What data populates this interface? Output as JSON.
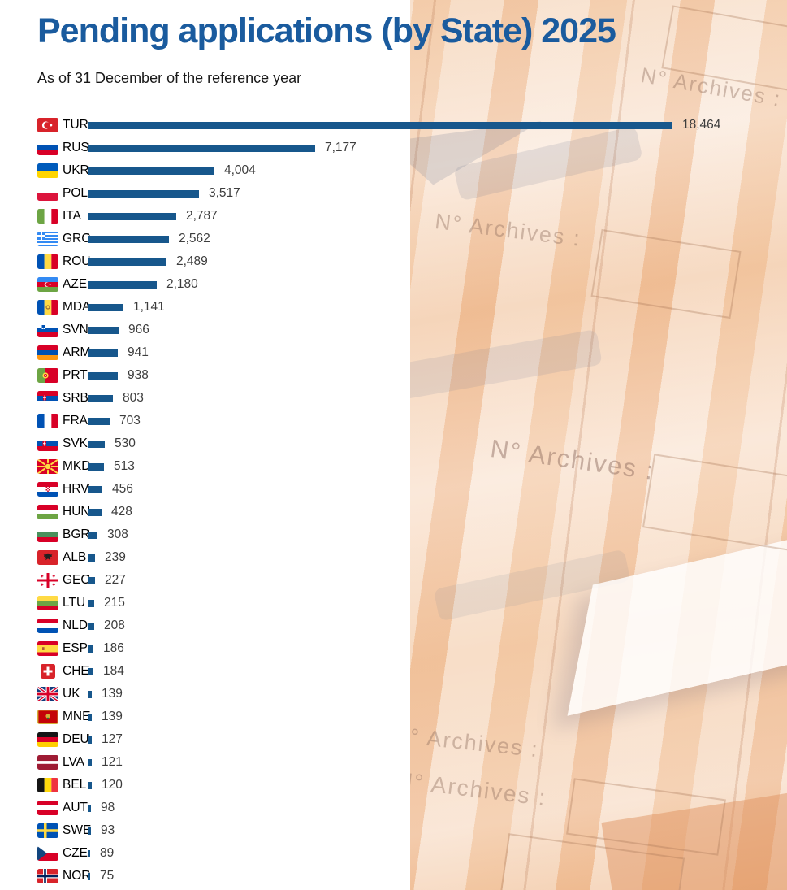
{
  "title": "Pending applications (by State) 2025",
  "subtitle": "As of 31 December of the reference year",
  "background": {
    "archive_label": "N° Archives :"
  },
  "colors": {
    "title_blue": "#1a5b9e",
    "bar_blue": "#17578c",
    "value_text": "#3d3d3d"
  },
  "chart_data": {
    "type": "bar",
    "orientation": "horizontal",
    "title": "Pending applications (by State) 2025",
    "subtitle": "As of 31 December of the reference year",
    "xlabel": "",
    "ylabel": "",
    "xlim": [
      0,
      18464
    ],
    "grid": false,
    "legend": "none",
    "categories": [
      "TUR",
      "RUS",
      "UKR",
      "POL",
      "ITA",
      "GRC",
      "ROU",
      "AZE",
      "MDA",
      "SVN",
      "ARM",
      "PRT",
      "SRB",
      "FRA",
      "SVK",
      "MKD",
      "HRV",
      "HUN",
      "BGR",
      "ALB",
      "GEO",
      "LTU",
      "NLD",
      "ESP",
      "CHE",
      "UK",
      "MNE",
      "DEU",
      "LVA",
      "BEL",
      "AUT",
      "SWE",
      "CZE",
      "NOR"
    ],
    "values": [
      18464,
      7177,
      4004,
      3517,
      2787,
      2562,
      2489,
      2180,
      1141,
      966,
      941,
      938,
      803,
      703,
      530,
      513,
      456,
      428,
      308,
      239,
      227,
      215,
      208,
      186,
      184,
      139,
      139,
      127,
      121,
      120,
      98,
      93,
      89,
      75
    ],
    "value_labels": [
      "18,464",
      "7,177",
      "4,004",
      "3,517",
      "2,787",
      "2,562",
      "2,489",
      "2,180",
      "1,141",
      "966",
      "941",
      "938",
      "803",
      "703",
      "530",
      "513",
      "456",
      "428",
      "308",
      "239",
      "227",
      "215",
      "208",
      "186",
      "184",
      "139",
      "139",
      "127",
      "121",
      "120",
      "98",
      "93",
      "89",
      "75"
    ],
    "flags": [
      "tur",
      "rus",
      "ukr",
      "pol",
      "ita",
      "grc",
      "rou",
      "aze",
      "mda",
      "svn",
      "arm",
      "prt",
      "srb",
      "fra",
      "svk",
      "mkd",
      "hrv",
      "hun",
      "bgr",
      "alb",
      "geo",
      "ltu",
      "nld",
      "esp",
      "che",
      "uk",
      "mne",
      "deu",
      "lva",
      "bel",
      "aut",
      "swe",
      "cze",
      "nor"
    ]
  }
}
